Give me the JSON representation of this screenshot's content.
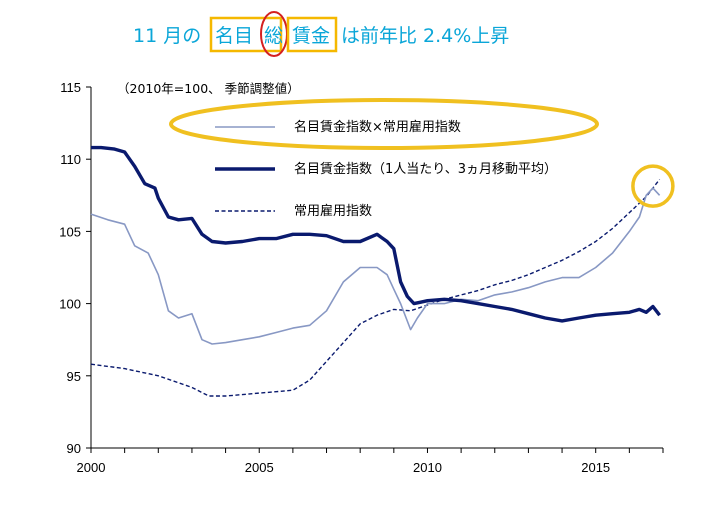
{
  "title": {
    "parts": [
      "11 月の",
      "名目",
      "総",
      "賃金",
      "は前年比 2.4%上昇"
    ],
    "highlight_color": "#f5b800",
    "circle_color": "#d42020"
  },
  "annotation_circle_color": "#f0c020",
  "chart_data": {
    "type": "line",
    "title": "11 月の名目総賃金は前年比 2.4%上昇",
    "note": "（2010年=100、 季節調整値）",
    "xlabel": "",
    "ylabel": "",
    "xlim": [
      2000,
      2017
    ],
    "ylim": [
      90,
      115
    ],
    "xticks": [
      "2000",
      "2005",
      "2010",
      "2015"
    ],
    "yticks": [
      "90",
      "95",
      "100",
      "105",
      "110",
      "115"
    ],
    "series": [
      {
        "name": "名目賃金指数×常用雇用指数",
        "color": "#8898c4",
        "style": "thin",
        "x": [
          2000,
          2000.5,
          2001,
          2001.3,
          2001.7,
          2002,
          2002.3,
          2002.6,
          2003,
          2003.3,
          2003.6,
          2004,
          2004.5,
          2005,
          2005.5,
          2006,
          2006.5,
          2007,
          2007.5,
          2008,
          2008.5,
          2008.8,
          2009,
          2009.2,
          2009.5,
          2009.7,
          2010,
          2010.5,
          2011,
          2011.5,
          2012,
          2012.5,
          2013,
          2013.5,
          2014,
          2014.5,
          2015,
          2015.5,
          2016,
          2016.3,
          2016.5,
          2016.7,
          2016.9
        ],
        "values": [
          106.2,
          105.8,
          105.5,
          104,
          103.5,
          102,
          99.5,
          99,
          99.3,
          97.5,
          97.2,
          97.3,
          97.5,
          97.7,
          98,
          98.3,
          98.5,
          99.5,
          101.5,
          102.5,
          102.5,
          102,
          101,
          100,
          98.2,
          99,
          100,
          100,
          100.3,
          100.2,
          100.6,
          100.8,
          101.1,
          101.5,
          101.8,
          101.8,
          102.5,
          103.5,
          105,
          106,
          107.5,
          108,
          107.5
        ]
      },
      {
        "name": "名目賃金指数（1人当たり、3ヵ月移動平均）",
        "color": "#0a1a6e",
        "style": "thick",
        "x": [
          2000,
          2000.3,
          2000.7,
          2001,
          2001.3,
          2001.6,
          2001.9,
          2002,
          2002.3,
          2002.6,
          2003,
          2003.3,
          2003.6,
          2004,
          2004.5,
          2005,
          2005.5,
          2006,
          2006.5,
          2007,
          2007.5,
          2008,
          2008.5,
          2008.8,
          2009,
          2009.2,
          2009.4,
          2009.6,
          2009.8,
          2010,
          2010.5,
          2011,
          2011.5,
          2012,
          2012.5,
          2013,
          2013.5,
          2014,
          2014.5,
          2015,
          2015.5,
          2016,
          2016.3,
          2016.5,
          2016.7,
          2016.9
        ],
        "values": [
          110.8,
          110.8,
          110.7,
          110.5,
          109.5,
          108.3,
          108,
          107.3,
          106,
          105.8,
          105.9,
          104.8,
          104.3,
          104.2,
          104.3,
          104.5,
          104.5,
          104.8,
          104.8,
          104.7,
          104.3,
          104.3,
          104.8,
          104.3,
          103.8,
          101.5,
          100.5,
          100,
          100.1,
          100.2,
          100.3,
          100.2,
          100,
          99.8,
          99.6,
          99.3,
          99,
          98.8,
          99,
          99.2,
          99.3,
          99.4,
          99.6,
          99.4,
          99.8,
          99.2
        ]
      },
      {
        "name": "常用雇用指数",
        "color": "#0a1a6e",
        "style": "dashed",
        "x": [
          2000,
          2001,
          2002,
          2003,
          2003.5,
          2004,
          2004.5,
          2005,
          2005.5,
          2006,
          2006.5,
          2007,
          2007.5,
          2008,
          2008.5,
          2009,
          2009.5,
          2010,
          2010.5,
          2011,
          2011.5,
          2012,
          2012.5,
          2013,
          2013.5,
          2014,
          2014.5,
          2015,
          2015.5,
          2016,
          2016.5,
          2016.9
        ],
        "values": [
          95.8,
          95.5,
          95,
          94.2,
          93.6,
          93.6,
          93.7,
          93.8,
          93.9,
          94,
          94.7,
          96,
          97.3,
          98.6,
          99.2,
          99.6,
          99.5,
          99.9,
          100.3,
          100.6,
          100.9,
          101.3,
          101.6,
          102,
          102.5,
          103,
          103.6,
          104.3,
          105.2,
          106.3,
          107.4,
          108.6
        ]
      }
    ]
  }
}
